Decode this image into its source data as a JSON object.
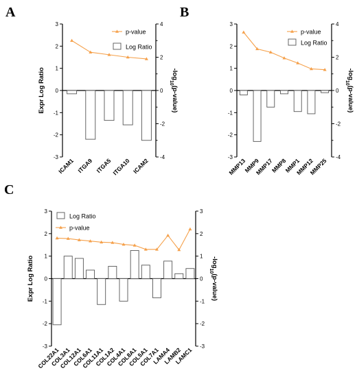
{
  "colors": {
    "bar_fill": "#ffffff",
    "bar_stroke": "#555555",
    "line": "#f5a04a",
    "axis": "#000000"
  },
  "chart_data": [
    {
      "panel": "A",
      "type": "bar",
      "categories": [
        "ICAM1",
        "ITGA9",
        "ITGA5",
        "ITGA10",
        "ICAM2"
      ],
      "series": [
        {
          "name": "Log Ratio",
          "type": "bar",
          "axis": "left",
          "values": [
            -0.15,
            -2.2,
            -1.35,
            -1.55,
            -2.25
          ]
        },
        {
          "name": "p-value",
          "type": "line",
          "axis": "right",
          "values": [
            3.0,
            2.3,
            2.15,
            2.0,
            1.9
          ]
        }
      ],
      "ylabel": "Expr Log Ratio",
      "y2label": "-log10(p-value)",
      "ylim": [
        -3,
        3
      ],
      "y2lim": [
        -4,
        4
      ],
      "yticks": [
        "3",
        "2",
        "1",
        "0",
        "-1",
        "-2",
        "-3"
      ],
      "y2ticks": [
        "4",
        "2",
        "0",
        "-2",
        "-4"
      ],
      "legend_position": "top-right",
      "legend_order": [
        "p-value",
        "Log Ratio"
      ]
    },
    {
      "panel": "B",
      "type": "bar",
      "categories": [
        "MMP13",
        "MMP9",
        "MMP17",
        "MMP8",
        "MMP1",
        "MMP12",
        "MMP25"
      ],
      "series": [
        {
          "name": "Log Ratio",
          "type": "bar",
          "axis": "left",
          "values": [
            -0.2,
            -2.3,
            -0.75,
            -0.15,
            -0.95,
            -1.05,
            -0.1
          ]
        },
        {
          "name": "p-value",
          "type": "line",
          "axis": "right",
          "values": [
            3.5,
            2.5,
            2.3,
            1.95,
            1.65,
            1.3,
            1.25
          ]
        }
      ],
      "ylabel": "",
      "y2label": "-log10(p-value)",
      "ylim": [
        -3,
        3
      ],
      "y2lim": [
        -4,
        4
      ],
      "yticks": [
        "3",
        "2",
        "1",
        "0",
        "-1",
        "-2",
        "-3"
      ],
      "y2ticks": [
        "4",
        "2",
        "0",
        "-2",
        "-4"
      ],
      "legend_position": "top-right",
      "legend_order": [
        "p-value",
        "Log Ratio"
      ]
    },
    {
      "panel": "C",
      "type": "bar",
      "categories": [
        "COL22A1",
        "COL3A1",
        "COL12A1",
        "COL6A1",
        "COL11A1",
        "COL1A2",
        "COL4A1",
        "COL8A1",
        "COL5A1",
        "COL7A1",
        "LAMA4",
        "LAMB2",
        "LAMC1"
      ],
      "series": [
        {
          "name": "Log Ratio",
          "type": "bar",
          "axis": "left",
          "values": [
            -2.05,
            1.0,
            0.9,
            0.38,
            -1.15,
            0.55,
            -1.0,
            1.25,
            0.6,
            -0.85,
            0.78,
            0.22,
            0.45
          ]
        },
        {
          "name": "p-value",
          "type": "line",
          "axis": "right",
          "values": [
            1.8,
            1.78,
            1.72,
            1.67,
            1.62,
            1.6,
            1.52,
            1.48,
            1.3,
            1.3,
            1.92,
            1.28,
            2.2
          ]
        }
      ],
      "ylabel": "Expr Log Ratio",
      "y2label": "-log10(p-value)",
      "ylim": [
        -3,
        3
      ],
      "y2lim": [
        -3,
        3
      ],
      "yticks": [
        "3",
        "2",
        "1",
        "0",
        "-1",
        "-2",
        "-3"
      ],
      "y2ticks": [
        "3",
        "2",
        "1",
        "0",
        "-1",
        "-2",
        "-3"
      ],
      "legend_position": "top-left",
      "legend_order": [
        "Log Ratio",
        "p-value"
      ]
    }
  ]
}
